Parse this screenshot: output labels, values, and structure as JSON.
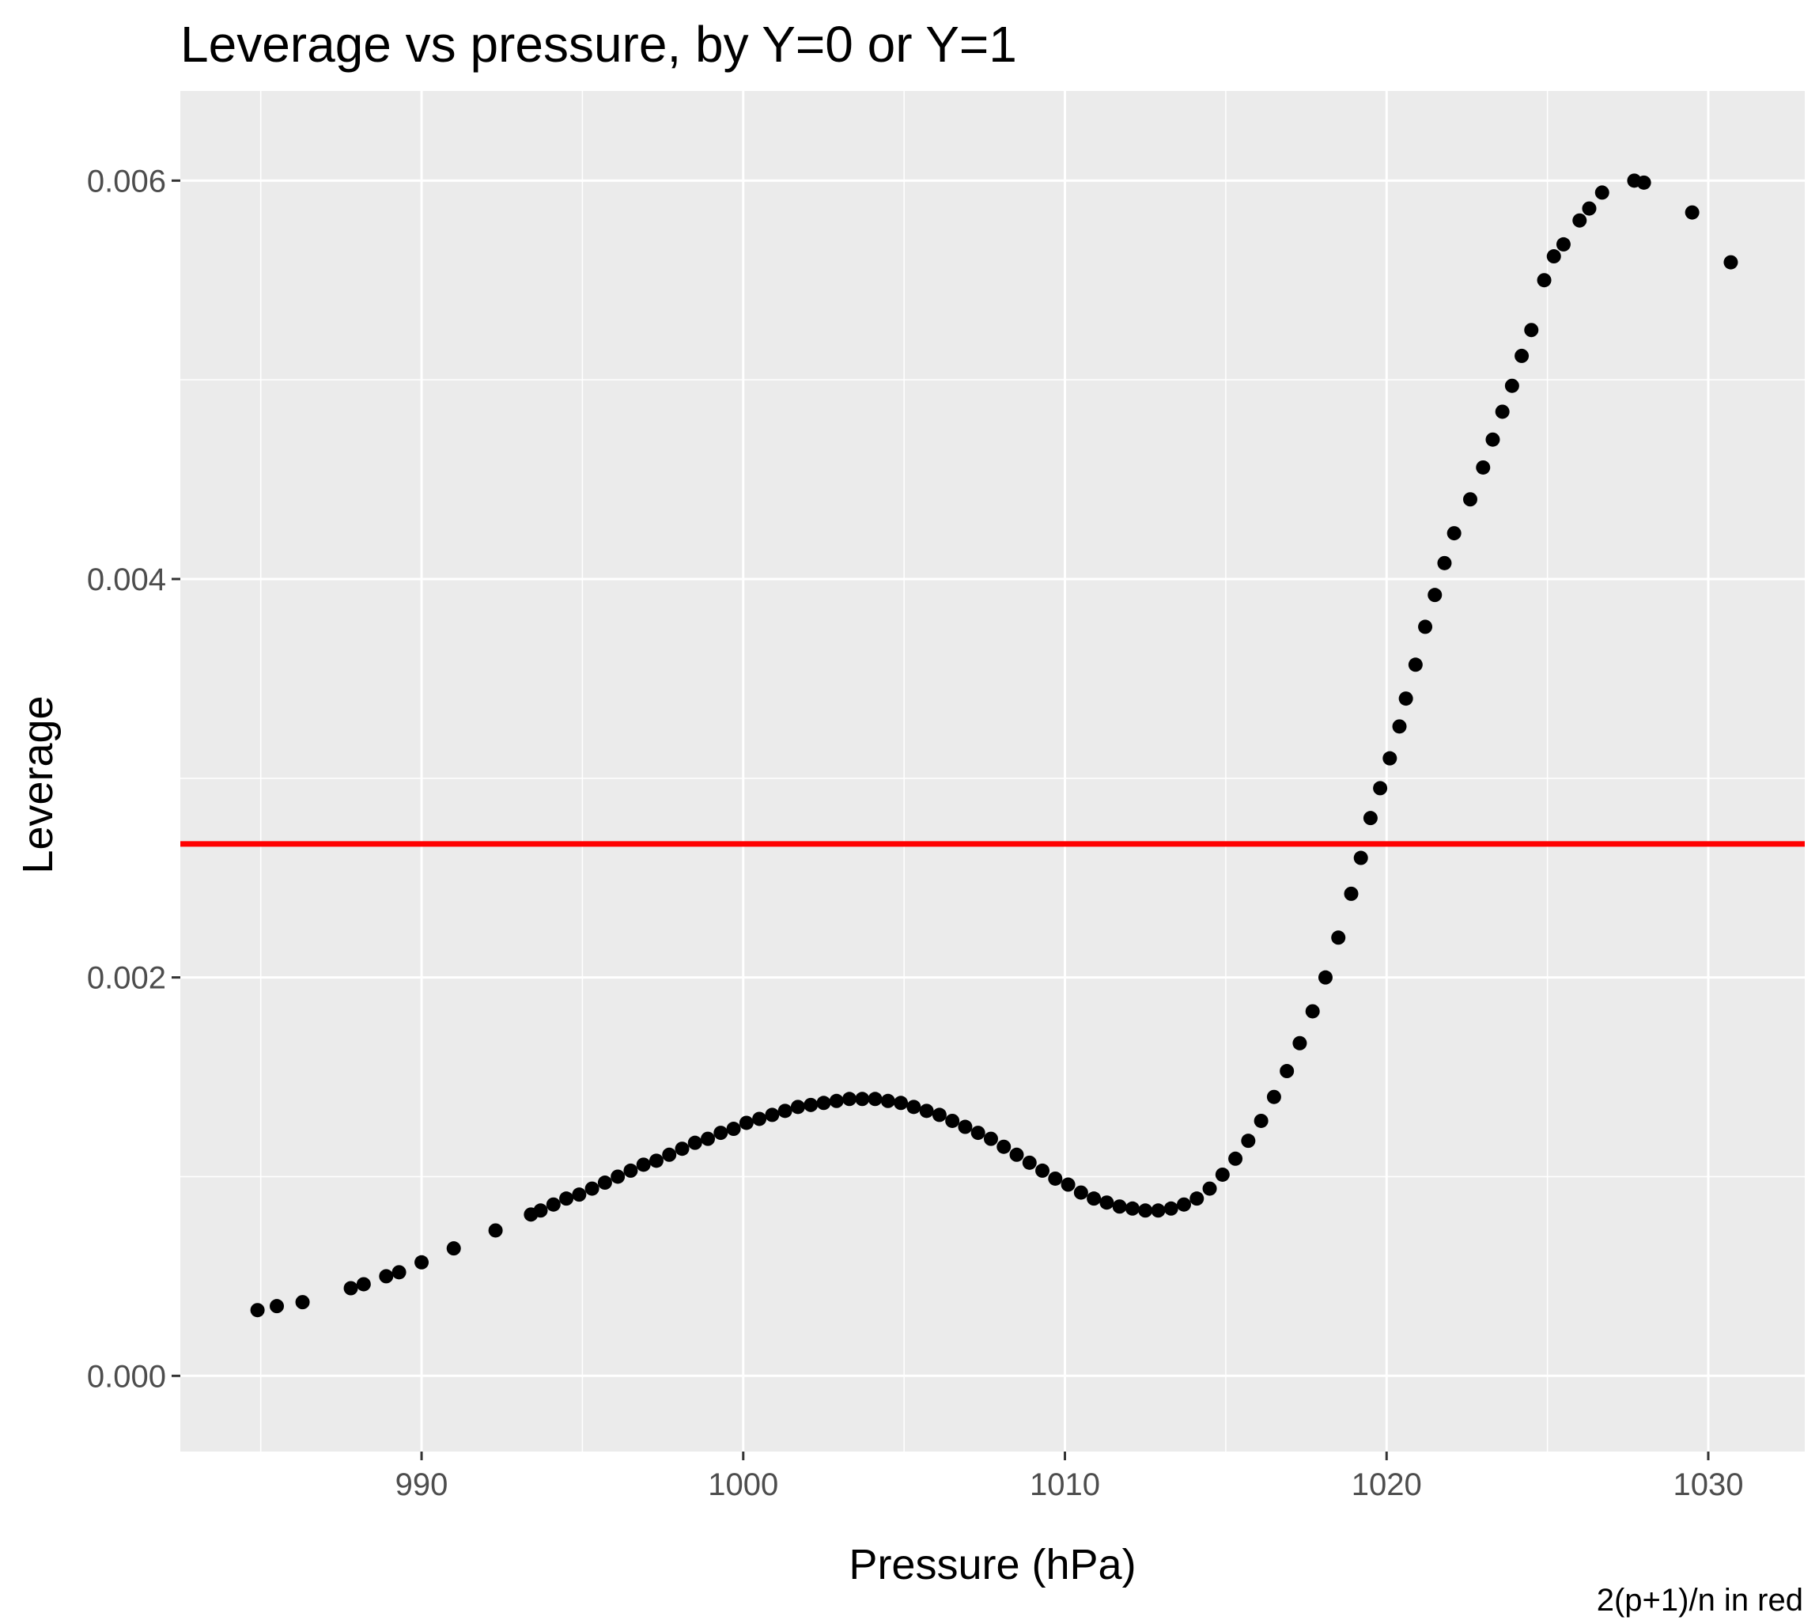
{
  "chart_data": {
    "type": "scatter",
    "title": "Leverage vs pressure, by Y=0 or Y=1",
    "xlabel": "Pressure (hPa)",
    "ylabel": "Leverage",
    "caption": "2(p+1)/n in red",
    "xlim": [
      982.5,
      1033.0
    ],
    "ylim": [
      -0.00038,
      0.00645
    ],
    "x_ticks": [
      990,
      1000,
      1010,
      1020,
      1030
    ],
    "x_tick_labels": [
      "990",
      "1000",
      "1010",
      "1020",
      "1030"
    ],
    "y_ticks": [
      0.0,
      0.002,
      0.004,
      0.006
    ],
    "y_tick_labels": [
      "0.000",
      "0.002",
      "0.004",
      "0.006"
    ],
    "grid": true,
    "background": "#ebebeb",
    "point_color": "#000000",
    "reference_line": {
      "orientation": "horizontal",
      "y": 0.00267,
      "color": "#ff0000"
    },
    "points": [
      [
        984.9,
        0.00033
      ],
      [
        985.5,
        0.00035
      ],
      [
        986.3,
        0.00037
      ],
      [
        987.8,
        0.00044
      ],
      [
        988.2,
        0.00046
      ],
      [
        988.9,
        0.0005
      ],
      [
        989.3,
        0.00052
      ],
      [
        990.0,
        0.00057
      ],
      [
        991.0,
        0.00064
      ],
      [
        992.3,
        0.00073
      ],
      [
        993.4,
        0.00081
      ],
      [
        993.7,
        0.00083
      ],
      [
        994.1,
        0.00086
      ],
      [
        994.5,
        0.00089
      ],
      [
        994.9,
        0.00091
      ],
      [
        995.3,
        0.00094
      ],
      [
        995.7,
        0.00097
      ],
      [
        996.1,
        0.001
      ],
      [
        996.5,
        0.00103
      ],
      [
        996.9,
        0.00106
      ],
      [
        997.3,
        0.00108
      ],
      [
        997.7,
        0.00111
      ],
      [
        998.1,
        0.00114
      ],
      [
        998.5,
        0.00117
      ],
      [
        998.9,
        0.00119
      ],
      [
        999.3,
        0.00122
      ],
      [
        999.7,
        0.00124
      ],
      [
        1000.1,
        0.00127
      ],
      [
        1000.5,
        0.00129
      ],
      [
        1000.9,
        0.00131
      ],
      [
        1001.3,
        0.00133
      ],
      [
        1001.7,
        0.00135
      ],
      [
        1002.1,
        0.00136
      ],
      [
        1002.5,
        0.00137
      ],
      [
        1002.9,
        0.00138
      ],
      [
        1003.3,
        0.00139
      ],
      [
        1003.7,
        0.00139
      ],
      [
        1004.1,
        0.00139
      ],
      [
        1004.5,
        0.00138
      ],
      [
        1004.9,
        0.00137
      ],
      [
        1005.3,
        0.00135
      ],
      [
        1005.7,
        0.00133
      ],
      [
        1006.1,
        0.00131
      ],
      [
        1006.5,
        0.00128
      ],
      [
        1006.9,
        0.00125
      ],
      [
        1007.3,
        0.00122
      ],
      [
        1007.7,
        0.00119
      ],
      [
        1008.1,
        0.00115
      ],
      [
        1008.5,
        0.00111
      ],
      [
        1008.9,
        0.00107
      ],
      [
        1009.3,
        0.00103
      ],
      [
        1009.7,
        0.00099
      ],
      [
        1010.1,
        0.00096
      ],
      [
        1010.5,
        0.00092
      ],
      [
        1010.9,
        0.00089
      ],
      [
        1011.3,
        0.00087
      ],
      [
        1011.7,
        0.00085
      ],
      [
        1012.1,
        0.00084
      ],
      [
        1012.5,
        0.00083
      ],
      [
        1012.9,
        0.00083
      ],
      [
        1013.3,
        0.00084
      ],
      [
        1013.7,
        0.00086
      ],
      [
        1014.1,
        0.00089
      ],
      [
        1014.5,
        0.00094
      ],
      [
        1014.9,
        0.00101
      ],
      [
        1015.3,
        0.00109
      ],
      [
        1015.7,
        0.00118
      ],
      [
        1016.1,
        0.00128
      ],
      [
        1016.5,
        0.0014
      ],
      [
        1016.9,
        0.00153
      ],
      [
        1017.3,
        0.00167
      ],
      [
        1017.7,
        0.00183
      ],
      [
        1018.1,
        0.002
      ],
      [
        1018.5,
        0.0022
      ],
      [
        1018.9,
        0.00242
      ],
      [
        1019.2,
        0.0026
      ],
      [
        1019.5,
        0.0028
      ],
      [
        1019.8,
        0.00295
      ],
      [
        1020.1,
        0.0031
      ],
      [
        1020.4,
        0.00326
      ],
      [
        1020.6,
        0.0034
      ],
      [
        1020.9,
        0.00357
      ],
      [
        1021.2,
        0.00376
      ],
      [
        1021.5,
        0.00392
      ],
      [
        1021.8,
        0.00408
      ],
      [
        1022.1,
        0.00423
      ],
      [
        1022.6,
        0.0044
      ],
      [
        1023.0,
        0.00456
      ],
      [
        1023.3,
        0.0047
      ],
      [
        1023.6,
        0.00484
      ],
      [
        1023.9,
        0.00497
      ],
      [
        1024.2,
        0.00512
      ],
      [
        1024.5,
        0.00525
      ],
      [
        1024.9,
        0.0055
      ],
      [
        1025.2,
        0.00562
      ],
      [
        1025.5,
        0.00568
      ],
      [
        1026.0,
        0.0058
      ],
      [
        1026.3,
        0.00586
      ],
      [
        1026.7,
        0.00594
      ],
      [
        1027.7,
        0.006
      ],
      [
        1028.0,
        0.00599
      ],
      [
        1029.5,
        0.00584
      ],
      [
        1030.7,
        0.00559
      ]
    ]
  }
}
